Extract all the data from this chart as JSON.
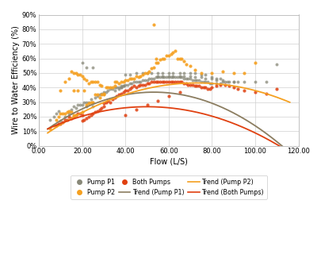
{
  "title": "",
  "xlabel": "Flow (L/S)",
  "ylabel": "Wire to Water Efficiency (%)",
  "xlim": [
    0,
    120
  ],
  "ylim": [
    0,
    0.9
  ],
  "xticks": [
    0,
    20,
    40,
    60,
    80,
    100,
    120
  ],
  "xtick_labels": [
    "0.00",
    "20.00",
    "40.00",
    "60.00",
    "80.00",
    "100.00",
    "120.00"
  ],
  "yticks": [
    0,
    0.1,
    0.2,
    0.3,
    0.4,
    0.5,
    0.6,
    0.7,
    0.8,
    0.9
  ],
  "ytick_labels": [
    "0%",
    "10%",
    "20%",
    "30%",
    "40%",
    "50%",
    "60%",
    "70%",
    "80%",
    "90%"
  ],
  "color_p1": "#888878",
  "color_p2": "#F5A020",
  "color_both": "#E04010",
  "trend_p1_color": "#8B7D60",
  "trend_p2_color": "#F5A020",
  "trend_both_color": "#E04010",
  "background_color": "#FFFFFF",
  "plot_bg_color": "#FFFFFF",
  "grid_color": "#D0D0D0",
  "pump_p1": [
    [
      5,
      0.18
    ],
    [
      7,
      0.2
    ],
    [
      8,
      0.22
    ],
    [
      9,
      0.24
    ],
    [
      10,
      0.17
    ],
    [
      12,
      0.2
    ],
    [
      14,
      0.22
    ],
    [
      15,
      0.25
    ],
    [
      16,
      0.27
    ],
    [
      17,
      0.26
    ],
    [
      18,
      0.28
    ],
    [
      19,
      0.28
    ],
    [
      20,
      0.28
    ],
    [
      20,
      0.57
    ],
    [
      21,
      0.3
    ],
    [
      22,
      0.3
    ],
    [
      22,
      0.27
    ],
    [
      22,
      0.54
    ],
    [
      23,
      0.3
    ],
    [
      24,
      0.32
    ],
    [
      25,
      0.3
    ],
    [
      25,
      0.27
    ],
    [
      25,
      0.54
    ],
    [
      26,
      0.33
    ],
    [
      27,
      0.34
    ],
    [
      28,
      0.35
    ],
    [
      29,
      0.36
    ],
    [
      30,
      0.36
    ],
    [
      30,
      0.37
    ],
    [
      31,
      0.37
    ],
    [
      32,
      0.38
    ],
    [
      33,
      0.39
    ],
    [
      34,
      0.39
    ],
    [
      35,
      0.4
    ],
    [
      35,
      0.38
    ],
    [
      36,
      0.4
    ],
    [
      37,
      0.4
    ],
    [
      37,
      0.39
    ],
    [
      38,
      0.41
    ],
    [
      38,
      0.4
    ],
    [
      38,
      0.4
    ],
    [
      39,
      0.41
    ],
    [
      39,
      0.41
    ],
    [
      40,
      0.42
    ],
    [
      40,
      0.49
    ],
    [
      41,
      0.42
    ],
    [
      42,
      0.43
    ],
    [
      42,
      0.49
    ],
    [
      43,
      0.43
    ],
    [
      44,
      0.44
    ],
    [
      45,
      0.44
    ],
    [
      45,
      0.5
    ],
    [
      46,
      0.44
    ],
    [
      47,
      0.44
    ],
    [
      48,
      0.45
    ],
    [
      48,
      0.5
    ],
    [
      49,
      0.45
    ],
    [
      50,
      0.45
    ],
    [
      50,
      0.5
    ],
    [
      51,
      0.46
    ],
    [
      52,
      0.46
    ],
    [
      52,
      0.5
    ],
    [
      53,
      0.46
    ],
    [
      54,
      0.47
    ],
    [
      55,
      0.47
    ],
    [
      55,
      0.48
    ],
    [
      55,
      0.5
    ],
    [
      56,
      0.47
    ],
    [
      57,
      0.47
    ],
    [
      57,
      0.48
    ],
    [
      57,
      0.5
    ],
    [
      58,
      0.47
    ],
    [
      59,
      0.47
    ],
    [
      60,
      0.47
    ],
    [
      60,
      0.48
    ],
    [
      60,
      0.5
    ],
    [
      61,
      0.47
    ],
    [
      62,
      0.47
    ],
    [
      62,
      0.48
    ],
    [
      62,
      0.5
    ],
    [
      63,
      0.47
    ],
    [
      64,
      0.47
    ],
    [
      65,
      0.47
    ],
    [
      65,
      0.48
    ],
    [
      65,
      0.5
    ],
    [
      66,
      0.47
    ],
    [
      67,
      0.46
    ],
    [
      67,
      0.48
    ],
    [
      67,
      0.5
    ],
    [
      68,
      0.46
    ],
    [
      69,
      0.46
    ],
    [
      70,
      0.46
    ],
    [
      70,
      0.48
    ],
    [
      70,
      0.5
    ],
    [
      71,
      0.45
    ],
    [
      72,
      0.45
    ],
    [
      72,
      0.47
    ],
    [
      72,
      0.5
    ],
    [
      73,
      0.45
    ],
    [
      74,
      0.45
    ],
    [
      75,
      0.44
    ],
    [
      75,
      0.47
    ],
    [
      75,
      0.49
    ],
    [
      76,
      0.44
    ],
    [
      77,
      0.44
    ],
    [
      77,
      0.46
    ],
    [
      77,
      0.49
    ],
    [
      78,
      0.44
    ],
    [
      79,
      0.43
    ],
    [
      80,
      0.43
    ],
    [
      80,
      0.46
    ],
    [
      80,
      0.47
    ],
    [
      82,
      0.43
    ],
    [
      82,
      0.45
    ],
    [
      82,
      0.46
    ],
    [
      84,
      0.43
    ],
    [
      84,
      0.46
    ],
    [
      85,
      0.44
    ],
    [
      85,
      0.45
    ],
    [
      86,
      0.44
    ],
    [
      87,
      0.44
    ],
    [
      88,
      0.44
    ],
    [
      90,
      0.44
    ],
    [
      90,
      0.44
    ],
    [
      92,
      0.44
    ],
    [
      95,
      0.44
    ],
    [
      100,
      0.44
    ],
    [
      105,
      0.44
    ],
    [
      110,
      0.56
    ]
  ],
  "pump_p2": [
    [
      5,
      0.12
    ],
    [
      7,
      0.14
    ],
    [
      8,
      0.18
    ],
    [
      9,
      0.2
    ],
    [
      10,
      0.22
    ],
    [
      10,
      0.38
    ],
    [
      11,
      0.22
    ],
    [
      12,
      0.22
    ],
    [
      12,
      0.44
    ],
    [
      13,
      0.23
    ],
    [
      14,
      0.24
    ],
    [
      14,
      0.46
    ],
    [
      15,
      0.23
    ],
    [
      15,
      0.51
    ],
    [
      16,
      0.21
    ],
    [
      16,
      0.38
    ],
    [
      16,
      0.5
    ],
    [
      17,
      0.21
    ],
    [
      17,
      0.5
    ],
    [
      18,
      0.38
    ],
    [
      18,
      0.49
    ],
    [
      19,
      0.49
    ],
    [
      20,
      0.23
    ],
    [
      20,
      0.48
    ],
    [
      21,
      0.38
    ],
    [
      21,
      0.46
    ],
    [
      22,
      0.28
    ],
    [
      22,
      0.45
    ],
    [
      23,
      0.29
    ],
    [
      23,
      0.43
    ],
    [
      24,
      0.3
    ],
    [
      24,
      0.44
    ],
    [
      25,
      0.3
    ],
    [
      25,
      0.44
    ],
    [
      26,
      0.35
    ],
    [
      26,
      0.44
    ],
    [
      27,
      0.35
    ],
    [
      27,
      0.44
    ],
    [
      28,
      0.33
    ],
    [
      28,
      0.42
    ],
    [
      29,
      0.35
    ],
    [
      29,
      0.41
    ],
    [
      30,
      0.35
    ],
    [
      30,
      0.36
    ],
    [
      31,
      0.4
    ],
    [
      32,
      0.4
    ],
    [
      33,
      0.4
    ],
    [
      34,
      0.4
    ],
    [
      35,
      0.41
    ],
    [
      35,
      0.44
    ],
    [
      36,
      0.44
    ],
    [
      37,
      0.43
    ],
    [
      38,
      0.44
    ],
    [
      39,
      0.44
    ],
    [
      40,
      0.45
    ],
    [
      41,
      0.45
    ],
    [
      42,
      0.46
    ],
    [
      43,
      0.46
    ],
    [
      44,
      0.46
    ],
    [
      45,
      0.48
    ],
    [
      46,
      0.47
    ],
    [
      47,
      0.48
    ],
    [
      48,
      0.49
    ],
    [
      49,
      0.5
    ],
    [
      50,
      0.5
    ],
    [
      51,
      0.51
    ],
    [
      52,
      0.53
    ],
    [
      53,
      0.54
    ],
    [
      53,
      0.83
    ],
    [
      54,
      0.57
    ],
    [
      54,
      0.6
    ],
    [
      55,
      0.57
    ],
    [
      56,
      0.59
    ],
    [
      57,
      0.6
    ],
    [
      58,
      0.6
    ],
    [
      59,
      0.62
    ],
    [
      60,
      0.62
    ],
    [
      61,
      0.63
    ],
    [
      62,
      0.64
    ],
    [
      63,
      0.65
    ],
    [
      64,
      0.6
    ],
    [
      65,
      0.6
    ],
    [
      66,
      0.6
    ],
    [
      67,
      0.58
    ],
    [
      68,
      0.56
    ],
    [
      70,
      0.55
    ],
    [
      72,
      0.52
    ],
    [
      75,
      0.5
    ],
    [
      80,
      0.5
    ],
    [
      85,
      0.51
    ],
    [
      90,
      0.5
    ],
    [
      95,
      0.5
    ],
    [
      100,
      0.57
    ]
  ],
  "pump_both": [
    [
      8,
      0.14
    ],
    [
      9,
      0.15
    ],
    [
      10,
      0.15
    ],
    [
      11,
      0.16
    ],
    [
      12,
      0.18
    ],
    [
      13,
      0.18
    ],
    [
      14,
      0.2
    ],
    [
      15,
      0.19
    ],
    [
      16,
      0.2
    ],
    [
      17,
      0.21
    ],
    [
      18,
      0.22
    ],
    [
      19,
      0.22
    ],
    [
      20,
      0.17
    ],
    [
      20,
      0.21
    ],
    [
      21,
      0.18
    ],
    [
      22,
      0.19
    ],
    [
      23,
      0.2
    ],
    [
      24,
      0.21
    ],
    [
      25,
      0.22
    ],
    [
      26,
      0.23
    ],
    [
      27,
      0.24
    ],
    [
      28,
      0.25
    ],
    [
      29,
      0.26
    ],
    [
      30,
      0.27
    ],
    [
      30,
      0.29
    ],
    [
      31,
      0.3
    ],
    [
      32,
      0.31
    ],
    [
      33,
      0.3
    ],
    [
      34,
      0.32
    ],
    [
      35,
      0.33
    ],
    [
      36,
      0.34
    ],
    [
      37,
      0.35
    ],
    [
      38,
      0.36
    ],
    [
      39,
      0.37
    ],
    [
      40,
      0.38
    ],
    [
      41,
      0.38
    ],
    [
      42,
      0.39
    ],
    [
      43,
      0.4
    ],
    [
      44,
      0.41
    ],
    [
      45,
      0.4
    ],
    [
      46,
      0.41
    ],
    [
      47,
      0.42
    ],
    [
      48,
      0.42
    ],
    [
      49,
      0.42
    ],
    [
      50,
      0.43
    ],
    [
      51,
      0.43
    ],
    [
      52,
      0.44
    ],
    [
      53,
      0.44
    ],
    [
      54,
      0.44
    ],
    [
      55,
      0.44
    ],
    [
      56,
      0.44
    ],
    [
      57,
      0.44
    ],
    [
      58,
      0.44
    ],
    [
      59,
      0.44
    ],
    [
      60,
      0.44
    ],
    [
      61,
      0.44
    ],
    [
      62,
      0.44
    ],
    [
      63,
      0.44
    ],
    [
      64,
      0.44
    ],
    [
      65,
      0.44
    ],
    [
      66,
      0.44
    ],
    [
      67,
      0.43
    ],
    [
      68,
      0.43
    ],
    [
      69,
      0.42
    ],
    [
      70,
      0.42
    ],
    [
      71,
      0.42
    ],
    [
      72,
      0.41
    ],
    [
      73,
      0.41
    ],
    [
      74,
      0.41
    ],
    [
      75,
      0.4
    ],
    [
      76,
      0.4
    ],
    [
      77,
      0.4
    ],
    [
      78,
      0.39
    ],
    [
      79,
      0.39
    ],
    [
      80,
      0.4
    ],
    [
      82,
      0.41
    ],
    [
      84,
      0.42
    ],
    [
      86,
      0.42
    ],
    [
      88,
      0.41
    ],
    [
      90,
      0.4
    ],
    [
      92,
      0.39
    ],
    [
      95,
      0.38
    ],
    [
      100,
      0.37
    ],
    [
      105,
      0.36
    ],
    [
      110,
      0.39
    ],
    [
      40,
      0.21
    ],
    [
      45,
      0.25
    ],
    [
      50,
      0.28
    ],
    [
      55,
      0.31
    ],
    [
      60,
      0.34
    ],
    [
      65,
      0.37
    ]
  ],
  "legend_items": [
    {
      "label": "Pump P1",
      "type": "scatter",
      "color": "#888878"
    },
    {
      "label": "Pump P2",
      "type": "scatter",
      "color": "#F5A020"
    },
    {
      "label": "Both Pumps",
      "type": "scatter",
      "color": "#E04010"
    },
    {
      "label": "Trend (Pump P1)",
      "type": "line",
      "color": "#8B7D60"
    },
    {
      "label": "Trend (Pump P2)",
      "type": "line",
      "color": "#F5A020"
    },
    {
      "label": "Trend (Both Pumps)",
      "type": "line",
      "color": "#E04010"
    }
  ]
}
